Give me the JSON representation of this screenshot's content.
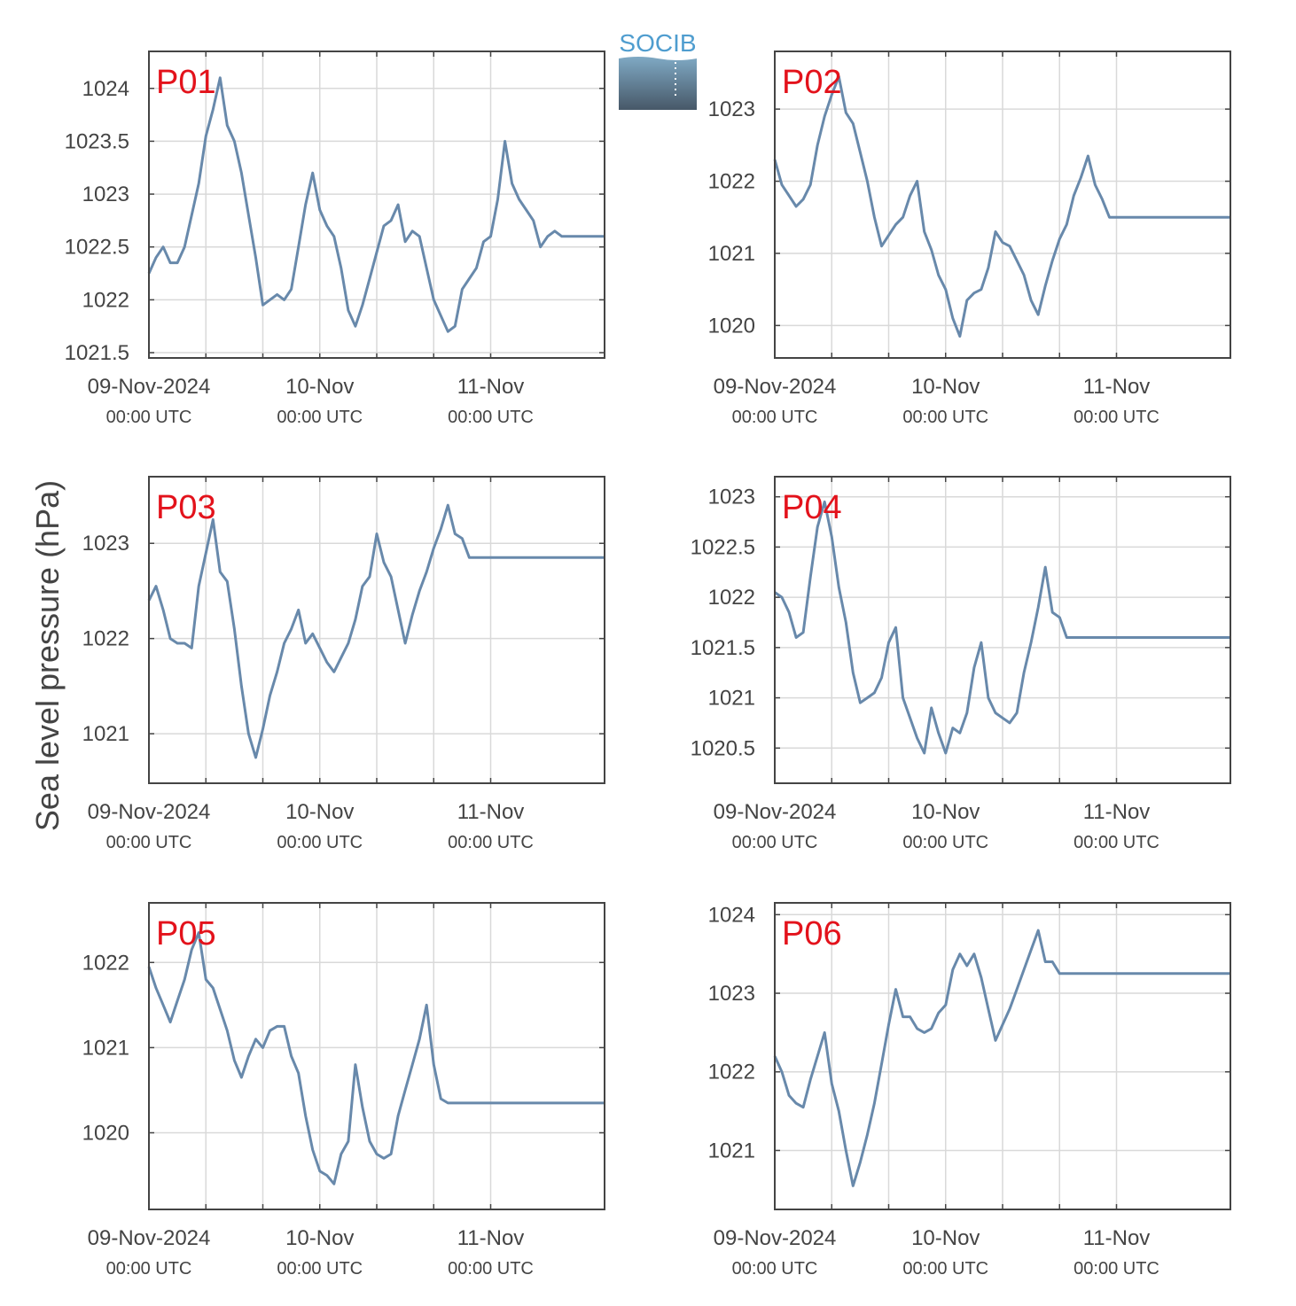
{
  "logo": {
    "text": "SOCIB"
  },
  "ylabel": "Sea level pressure (hPa)",
  "colors": {
    "line": "#6889ab",
    "panel_label": "#e3121b",
    "grid": "#d9d9d9",
    "axis": "#444444",
    "text": "#444444"
  },
  "x_ticks": [
    {
      "label": "09-Nov-2024",
      "sublabel": "00:00 UTC",
      "hour": 0
    },
    {
      "label": "10-Nov",
      "sublabel": "00:00 UTC",
      "hour": 24
    },
    {
      "label": "11-Nov",
      "sublabel": "00:00 UTC",
      "hour": 48
    }
  ],
  "x_grid_hours": [
    0,
    8,
    16,
    24,
    32,
    40,
    48
  ],
  "chart_data": [
    {
      "type": "line",
      "panel": "P01",
      "xlabel": "",
      "xlim_hours": [
        0,
        64
      ],
      "ylim": [
        1021.45,
        1024.35
      ],
      "yticks": [
        "1021.5",
        "1022",
        "1022.5",
        "1023",
        "1023.5",
        "1024"
      ],
      "ytick_values": [
        1021.5,
        1022,
        1022.5,
        1023,
        1023.5,
        1024
      ],
      "series": [
        {
          "x_hours": [
            0,
            1,
            2,
            3,
            4,
            5,
            6,
            7,
            8,
            9,
            10,
            11,
            12,
            13,
            14,
            15,
            16,
            17,
            18,
            19,
            20,
            21,
            22,
            23,
            24,
            25,
            26,
            27,
            28,
            29,
            30,
            31,
            32,
            33,
            34,
            35,
            36,
            37,
            38,
            39,
            40,
            41,
            42,
            43,
            44,
            45,
            46,
            47,
            48,
            49,
            50,
            51,
            52,
            53,
            54,
            55,
            56,
            57,
            58,
            59,
            60,
            61,
            62,
            63,
            64
          ],
          "values": [
            1022.25,
            1022.4,
            1022.5,
            1022.35,
            1022.35,
            1022.5,
            1022.8,
            1023.1,
            1023.55,
            1023.8,
            1024.1,
            1023.65,
            1023.5,
            1023.2,
            1022.8,
            1022.4,
            1021.95,
            1022.0,
            1022.05,
            1022.0,
            1022.1,
            1022.5,
            1022.9,
            1023.2,
            1022.85,
            1022.7,
            1022.6,
            1022.3,
            1021.9,
            1021.75,
            1021.95,
            1022.2,
            1022.45,
            1022.7,
            1022.75,
            1022.9,
            1022.55,
            1022.65,
            1022.6,
            1022.3,
            1022.0,
            1021.85,
            1021.7,
            1021.75,
            1022.1,
            1022.2,
            1022.3,
            1022.55,
            1022.6,
            1022.95,
            1023.5,
            1023.1,
            1022.95,
            1022.85,
            1022.75,
            1022.5,
            1022.6,
            1022.65,
            1022.6,
            1022.6,
            1022.6,
            1022.6,
            1022.6,
            1022.6,
            1022.6
          ]
        }
      ]
    },
    {
      "type": "line",
      "panel": "P02",
      "xlabel": "",
      "xlim_hours": [
        0,
        64
      ],
      "ylim": [
        1019.55,
        1023.8
      ],
      "yticks": [
        "1020",
        "1021",
        "1022",
        "1023"
      ],
      "ytick_values": [
        1020,
        1021,
        1022,
        1023
      ],
      "series": [
        {
          "x_hours": [
            0,
            1,
            2,
            3,
            4,
            5,
            6,
            7,
            8,
            9,
            10,
            11,
            12,
            13,
            14,
            15,
            16,
            17,
            18,
            19,
            20,
            21,
            22,
            23,
            24,
            25,
            26,
            27,
            28,
            29,
            30,
            31,
            32,
            33,
            34,
            35,
            36,
            37,
            38,
            39,
            40,
            41,
            42,
            43,
            44,
            45,
            46,
            47,
            48,
            49,
            50,
            51,
            52,
            53,
            54,
            55,
            56,
            57,
            58,
            59,
            60,
            61,
            62,
            63,
            64
          ],
          "values": [
            1022.3,
            1021.95,
            1021.8,
            1021.65,
            1021.75,
            1021.95,
            1022.5,
            1022.9,
            1023.2,
            1023.45,
            1022.95,
            1022.8,
            1022.4,
            1022.0,
            1021.5,
            1021.1,
            1021.25,
            1021.4,
            1021.5,
            1021.8,
            1022.0,
            1021.3,
            1021.05,
            1020.7,
            1020.5,
            1020.1,
            1019.85,
            1020.35,
            1020.45,
            1020.5,
            1020.8,
            1021.3,
            1021.15,
            1021.1,
            1020.9,
            1020.7,
            1020.35,
            1020.15,
            1020.55,
            1020.9,
            1021.2,
            1021.4,
            1021.8,
            1022.05,
            1022.35,
            1021.95,
            1021.75,
            1021.5,
            1021.5,
            1021.5,
            1021.5,
            1021.5,
            1021.5,
            1021.5,
            1021.5,
            1021.5,
            1021.5,
            1021.5,
            1021.5,
            1021.5,
            1021.5,
            1021.5,
            1021.5,
            1021.5,
            1021.5
          ]
        }
      ]
    },
    {
      "type": "line",
      "panel": "P03",
      "xlabel": "",
      "xlim_hours": [
        0,
        64
      ],
      "ylim": [
        1020.48,
        1023.7
      ],
      "yticks": [
        "1021",
        "1022",
        "1023"
      ],
      "ytick_values": [
        1021,
        1022,
        1023
      ],
      "series": [
        {
          "x_hours": [
            0,
            1,
            2,
            3,
            4,
            5,
            6,
            7,
            8,
            9,
            10,
            11,
            12,
            13,
            14,
            15,
            16,
            17,
            18,
            19,
            20,
            21,
            22,
            23,
            24,
            25,
            26,
            27,
            28,
            29,
            30,
            31,
            32,
            33,
            34,
            35,
            36,
            37,
            38,
            39,
            40,
            41,
            42,
            43,
            44,
            45,
            46,
            47,
            48,
            49,
            50,
            51,
            52,
            53,
            54,
            55,
            56,
            57,
            58,
            59,
            60,
            61,
            62,
            63,
            64
          ],
          "values": [
            1022.4,
            1022.55,
            1022.3,
            1022.0,
            1021.95,
            1021.95,
            1021.9,
            1022.55,
            1022.9,
            1023.25,
            1022.7,
            1022.6,
            1022.1,
            1021.5,
            1021.0,
            1020.75,
            1021.05,
            1021.4,
            1021.65,
            1021.95,
            1022.1,
            1022.3,
            1021.95,
            1022.05,
            1021.9,
            1021.75,
            1021.65,
            1021.8,
            1021.95,
            1022.2,
            1022.55,
            1022.65,
            1023.1,
            1022.8,
            1022.65,
            1022.3,
            1021.95,
            1022.25,
            1022.5,
            1022.7,
            1022.95,
            1023.15,
            1023.4,
            1023.1,
            1023.05,
            1022.85,
            1022.85,
            1022.85,
            1022.85,
            1022.85,
            1022.85,
            1022.85,
            1022.85,
            1022.85,
            1022.85,
            1022.85,
            1022.85,
            1022.85,
            1022.85,
            1022.85,
            1022.85,
            1022.85,
            1022.85,
            1022.85,
            1022.85
          ]
        }
      ]
    },
    {
      "type": "line",
      "panel": "P04",
      "xlabel": "",
      "xlim_hours": [
        0,
        64
      ],
      "ylim": [
        1020.15,
        1023.2
      ],
      "yticks": [
        "1020.5",
        "1021",
        "1021.5",
        "1022",
        "1022.5",
        "1023"
      ],
      "ytick_values": [
        1020.5,
        1021,
        1021.5,
        1022,
        1022.5,
        1023
      ],
      "series": [
        {
          "x_hours": [
            0,
            1,
            2,
            3,
            4,
            5,
            6,
            7,
            8,
            9,
            10,
            11,
            12,
            13,
            14,
            15,
            16,
            17,
            18,
            19,
            20,
            21,
            22,
            23,
            24,
            25,
            26,
            27,
            28,
            29,
            30,
            31,
            32,
            33,
            34,
            35,
            36,
            37,
            38,
            39,
            40,
            41,
            42,
            43,
            44,
            45,
            46,
            47,
            48,
            49,
            50,
            51,
            52,
            53,
            54,
            55,
            56,
            57,
            58,
            59,
            60,
            61,
            62,
            63,
            64
          ],
          "values": [
            1022.05,
            1022.0,
            1021.85,
            1021.6,
            1021.65,
            1022.2,
            1022.7,
            1022.95,
            1022.6,
            1022.1,
            1021.75,
            1021.25,
            1020.95,
            1021.0,
            1021.05,
            1021.2,
            1021.55,
            1021.7,
            1021.0,
            1020.8,
            1020.6,
            1020.45,
            1020.9,
            1020.65,
            1020.45,
            1020.7,
            1020.65,
            1020.85,
            1021.3,
            1021.55,
            1021.0,
            1020.85,
            1020.8,
            1020.75,
            1020.85,
            1021.25,
            1021.55,
            1021.9,
            1022.3,
            1021.85,
            1021.8,
            1021.6,
            1021.6,
            1021.6,
            1021.6,
            1021.6,
            1021.6,
            1021.6,
            1021.6,
            1021.6,
            1021.6,
            1021.6,
            1021.6,
            1021.6,
            1021.6,
            1021.6,
            1021.6,
            1021.6,
            1021.6,
            1021.6,
            1021.6,
            1021.6,
            1021.6,
            1021.6,
            1021.6
          ]
        }
      ]
    },
    {
      "type": "line",
      "panel": "P05",
      "xlabel": "",
      "xlim_hours": [
        0,
        64
      ],
      "ylim": [
        1019.1,
        1022.7
      ],
      "yticks": [
        "1020",
        "1021",
        "1022"
      ],
      "ytick_values": [
        1020,
        1021,
        1022
      ],
      "series": [
        {
          "x_hours": [
            0,
            1,
            2,
            3,
            4,
            5,
            6,
            7,
            8,
            9,
            10,
            11,
            12,
            13,
            14,
            15,
            16,
            17,
            18,
            19,
            20,
            21,
            22,
            23,
            24,
            25,
            26,
            27,
            28,
            29,
            30,
            31,
            32,
            33,
            34,
            35,
            36,
            37,
            38,
            39,
            40,
            41,
            42,
            43,
            44,
            45,
            46,
            47,
            48,
            49,
            50,
            51,
            52,
            53,
            54,
            55,
            56,
            57,
            58,
            59,
            60,
            61,
            62,
            63,
            64
          ],
          "values": [
            1021.95,
            1021.7,
            1021.5,
            1021.3,
            1021.55,
            1021.8,
            1022.15,
            1022.35,
            1021.8,
            1021.7,
            1021.45,
            1021.2,
            1020.85,
            1020.65,
            1020.9,
            1021.1,
            1021.0,
            1021.2,
            1021.25,
            1021.25,
            1020.9,
            1020.7,
            1020.2,
            1019.8,
            1019.55,
            1019.5,
            1019.4,
            1019.75,
            1019.9,
            1020.8,
            1020.3,
            1019.9,
            1019.75,
            1019.7,
            1019.75,
            1020.2,
            1020.5,
            1020.8,
            1021.1,
            1021.5,
            1020.8,
            1020.4,
            1020.35,
            1020.35,
            1020.35,
            1020.35,
            1020.35,
            1020.35,
            1020.35,
            1020.35,
            1020.35,
            1020.35,
            1020.35,
            1020.35,
            1020.35,
            1020.35,
            1020.35,
            1020.35,
            1020.35,
            1020.35,
            1020.35,
            1020.35,
            1020.35,
            1020.35,
            1020.35
          ]
        }
      ]
    },
    {
      "type": "line",
      "panel": "P06",
      "xlabel": "",
      "xlim_hours": [
        0,
        64
      ],
      "ylim": [
        1020.25,
        1024.15
      ],
      "yticks": [
        "1021",
        "1022",
        "1023",
        "1024"
      ],
      "ytick_values": [
        1021,
        1022,
        1023,
        1024
      ],
      "series": [
        {
          "x_hours": [
            0,
            1,
            2,
            3,
            4,
            5,
            6,
            7,
            8,
            9,
            10,
            11,
            12,
            13,
            14,
            15,
            16,
            17,
            18,
            19,
            20,
            21,
            22,
            23,
            24,
            25,
            26,
            27,
            28,
            29,
            30,
            31,
            32,
            33,
            34,
            35,
            36,
            37,
            38,
            39,
            40,
            41,
            42,
            43,
            44,
            45,
            46,
            47,
            48,
            49,
            50,
            51,
            52,
            53,
            54,
            55,
            56,
            57,
            58,
            59,
            60,
            61,
            62,
            63,
            64
          ],
          "values": [
            1022.2,
            1022.0,
            1021.7,
            1021.6,
            1021.55,
            1021.9,
            1022.2,
            1022.5,
            1021.85,
            1021.5,
            1021.0,
            1020.55,
            1020.85,
            1021.2,
            1021.6,
            1022.1,
            1022.6,
            1023.05,
            1022.7,
            1022.7,
            1022.55,
            1022.5,
            1022.55,
            1022.75,
            1022.85,
            1023.3,
            1023.5,
            1023.35,
            1023.5,
            1023.2,
            1022.8,
            1022.4,
            1022.6,
            1022.8,
            1023.05,
            1023.3,
            1023.55,
            1023.8,
            1023.4,
            1023.4,
            1023.25,
            1023.25,
            1023.25,
            1023.25,
            1023.25,
            1023.25,
            1023.25,
            1023.25,
            1023.25,
            1023.25,
            1023.25,
            1023.25,
            1023.25,
            1023.25,
            1023.25,
            1023.25,
            1023.25,
            1023.25,
            1023.25,
            1023.25,
            1023.25,
            1023.25,
            1023.25,
            1023.25,
            1023.25
          ]
        }
      ]
    }
  ]
}
